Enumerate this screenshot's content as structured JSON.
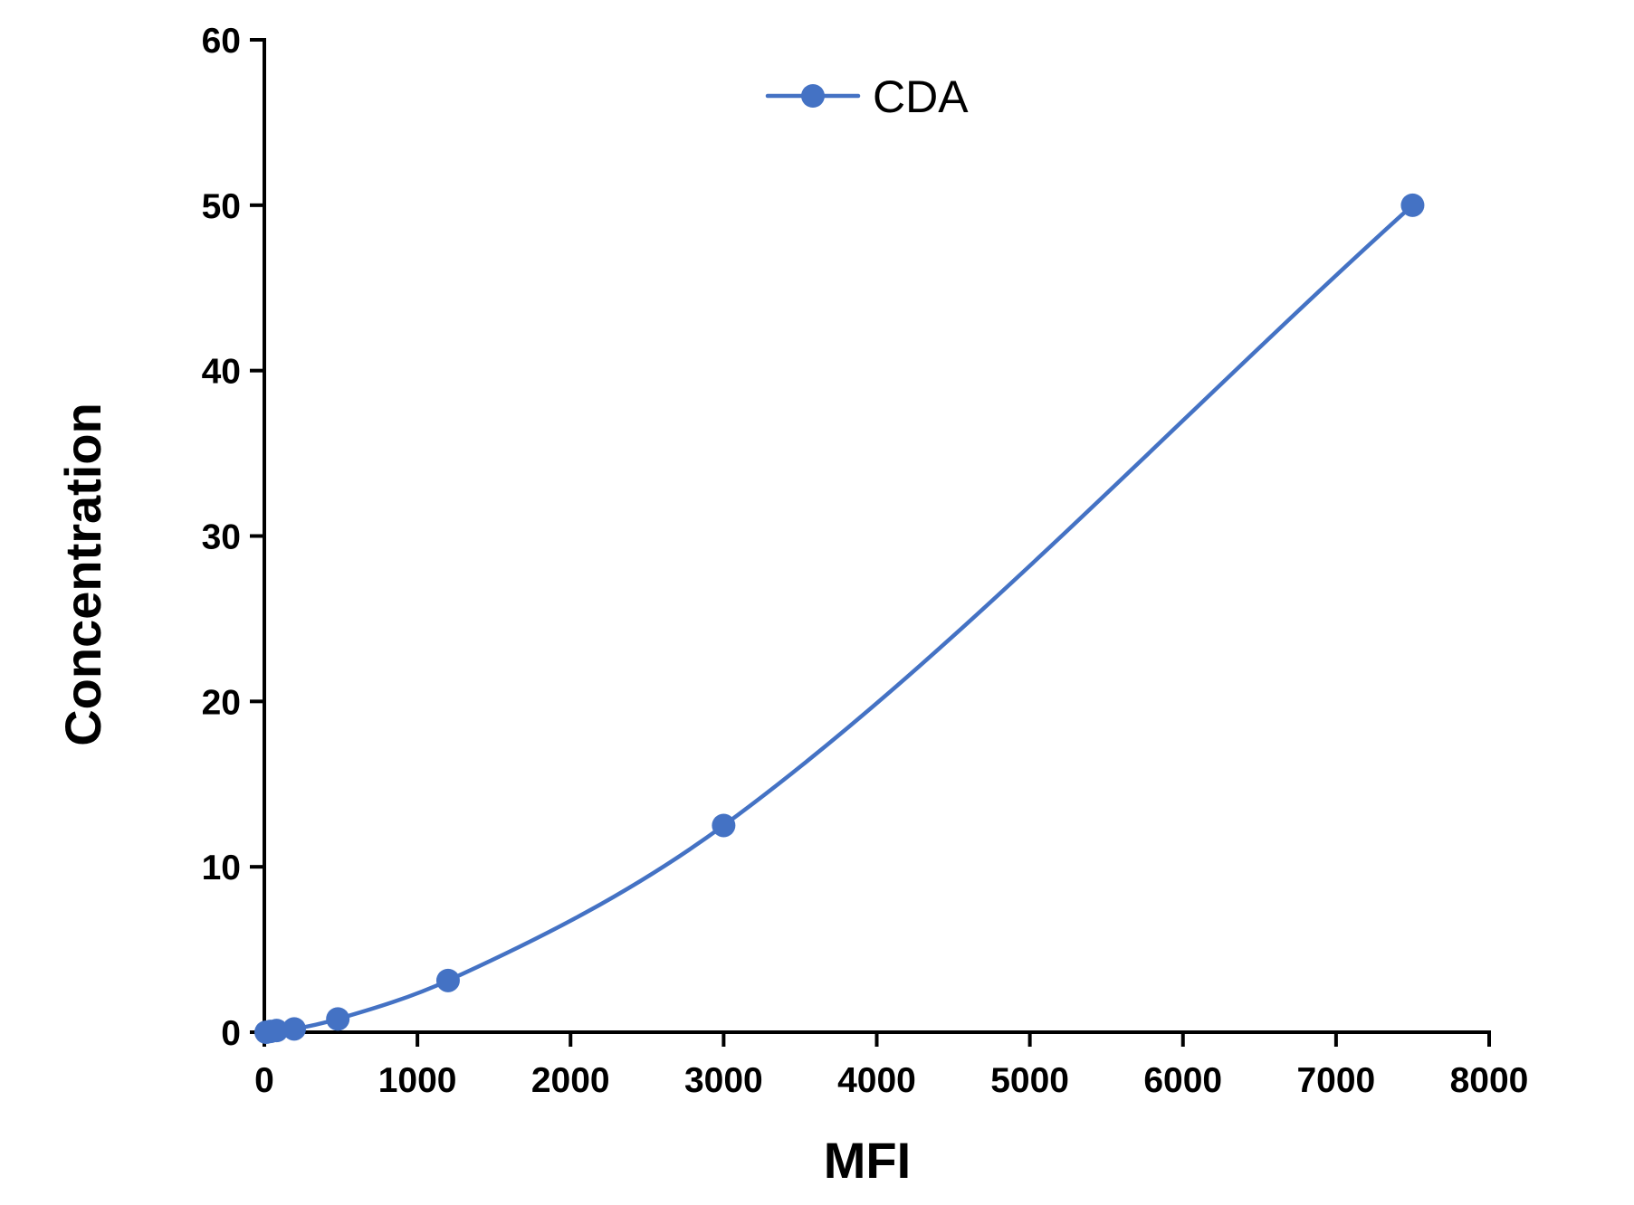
{
  "chart_data": {
    "type": "line",
    "title": "",
    "xlabel": "MFI",
    "ylabel": "Concentration",
    "xlim": [
      0,
      8000
    ],
    "ylim": [
      0,
      60
    ],
    "x_ticks": [
      "0",
      "1000",
      "2000",
      "3000",
      "4000",
      "5000",
      "6000",
      "7000",
      "8000"
    ],
    "y_ticks": [
      "0",
      "10",
      "20",
      "30",
      "40",
      "50",
      "60"
    ],
    "grid": false,
    "legend_position": "top-center",
    "smooth": true,
    "series": [
      {
        "name": "CDA",
        "color": "#4472C4",
        "x": [
          12,
          40,
          80,
          195,
          480,
          1200,
          3000,
          7500
        ],
        "y": [
          0,
          0.05,
          0.1,
          0.2,
          0.8,
          3.125,
          12.5,
          50
        ]
      }
    ]
  }
}
